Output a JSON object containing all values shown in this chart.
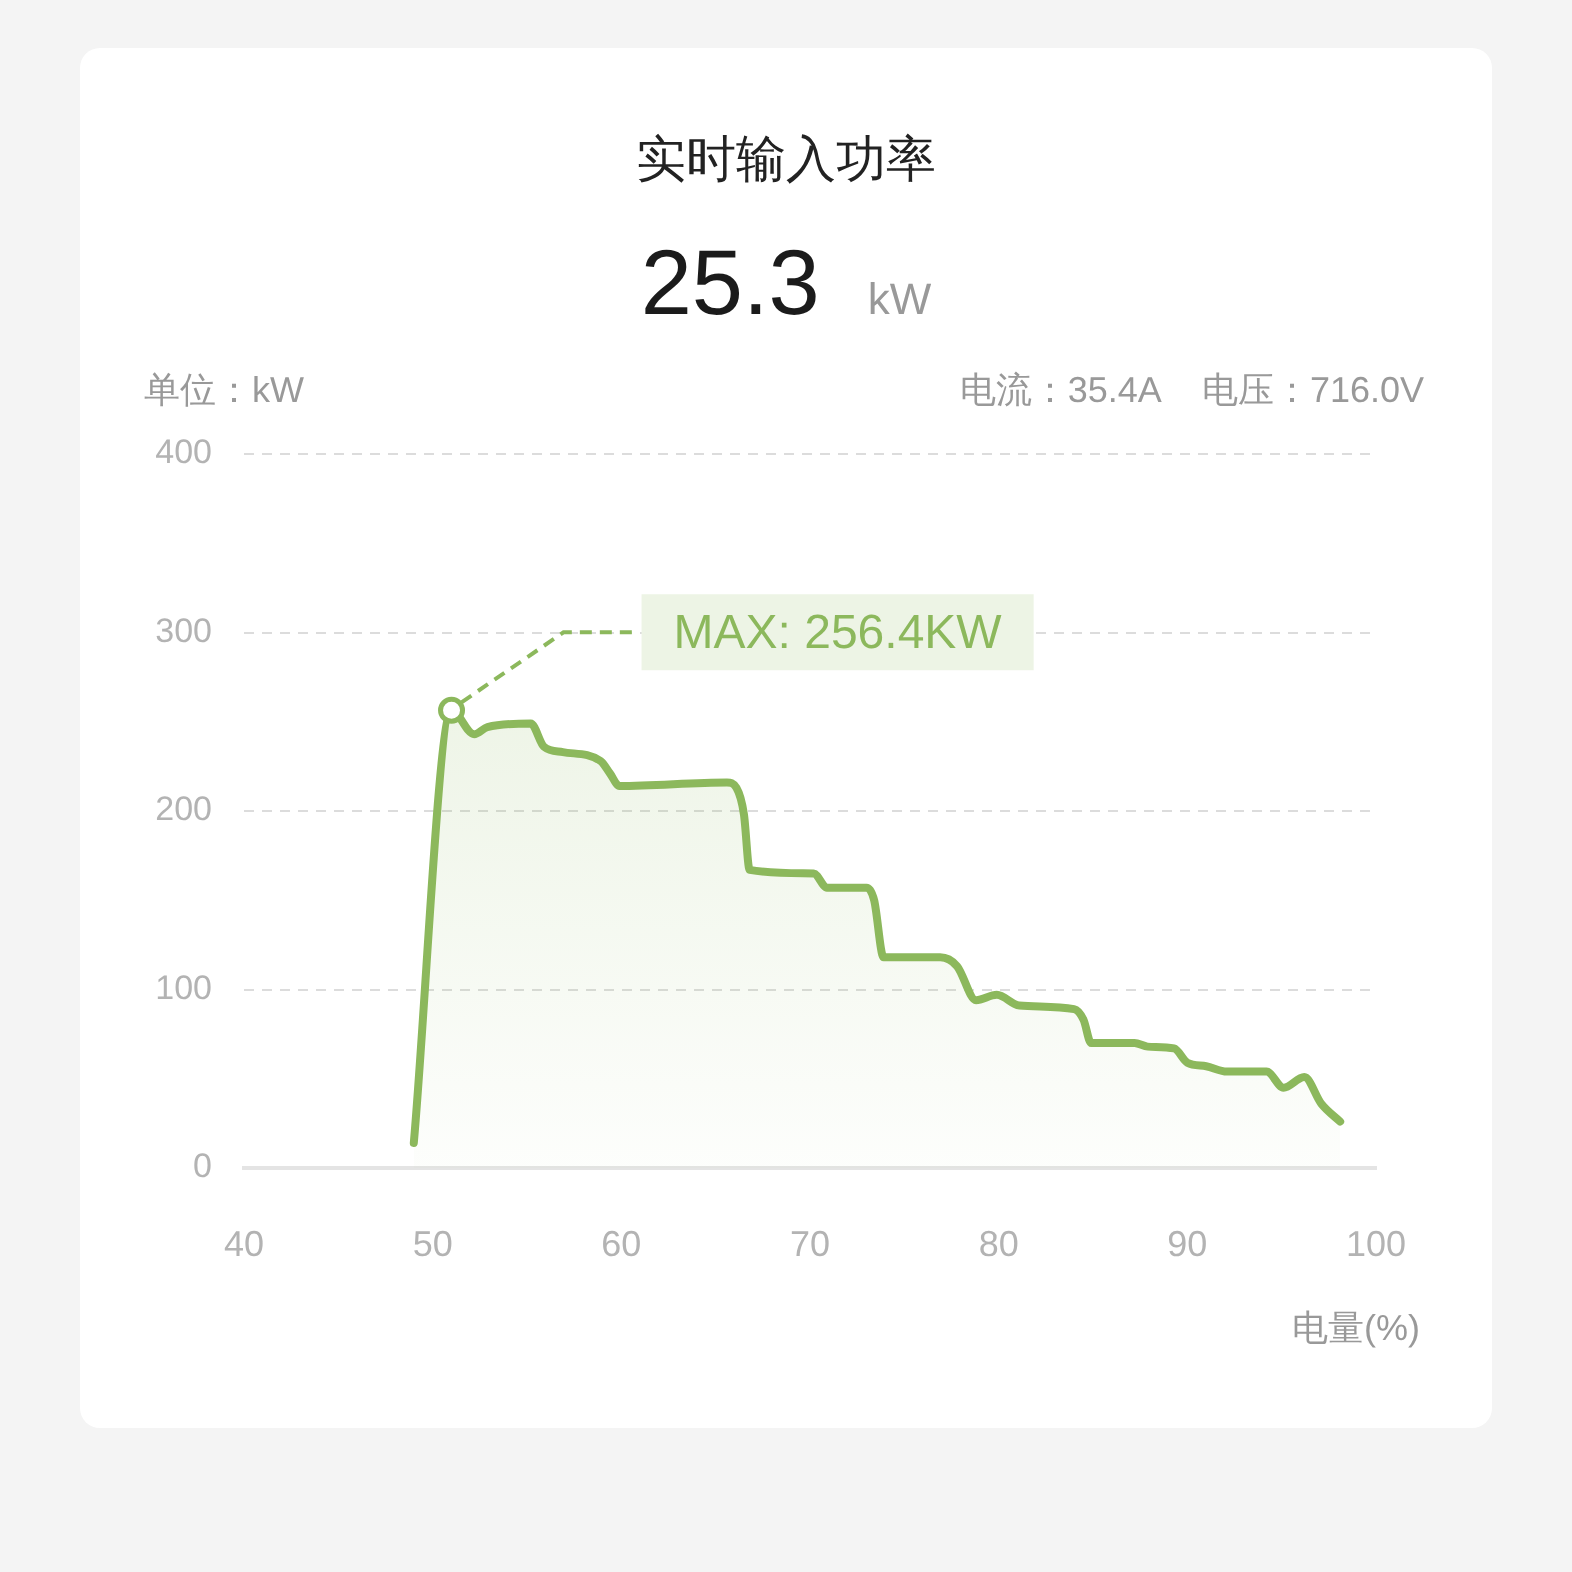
{
  "chart_data": {
    "type": "area",
    "title": "实时输入功率",
    "subtitle": "25.3 kW",
    "ylabel": "单位：kW",
    "xlabel": "电量(%)",
    "annotations": [
      "电流：35.4A",
      "电压：716.0V",
      {
        "text": "MAX: 256.4KW",
        "x": 51,
        "y": 256.4
      }
    ],
    "x": [
      49.0,
      51.0,
      52.2,
      52.9,
      55.2,
      55.9,
      56.9,
      58.9,
      59.4,
      59.9,
      65.6,
      66.1,
      66.5,
      66.8,
      70.2,
      70.9,
      73.0,
      73.4,
      73.9,
      76.9,
      77.8,
      78.8,
      79.9,
      81.1,
      84.0,
      84.5,
      84.9,
      87.2,
      87.9,
      89.3,
      90.0,
      91.0,
      92.1,
      94.2,
      95.1,
      96.2,
      97.1,
      98.1
    ],
    "values": [
      14,
      256.4,
      243,
      247,
      249,
      236,
      233,
      228,
      221,
      214,
      216,
      213,
      198,
      167,
      165,
      157,
      157,
      150,
      118,
      118,
      113,
      94,
      97,
      91,
      89,
      83,
      70,
      70,
      68,
      67,
      59,
      57,
      54,
      54,
      45,
      51,
      36,
      26
    ],
    "color": "#8cb85c",
    "xlim": [
      40,
      100
    ],
    "ylim": [
      0,
      400
    ],
    "xticks": [
      40,
      50,
      60,
      70,
      80,
      90,
      100
    ],
    "yticks": [
      0,
      100,
      200,
      300,
      400
    ],
    "grid": "y"
  }
}
